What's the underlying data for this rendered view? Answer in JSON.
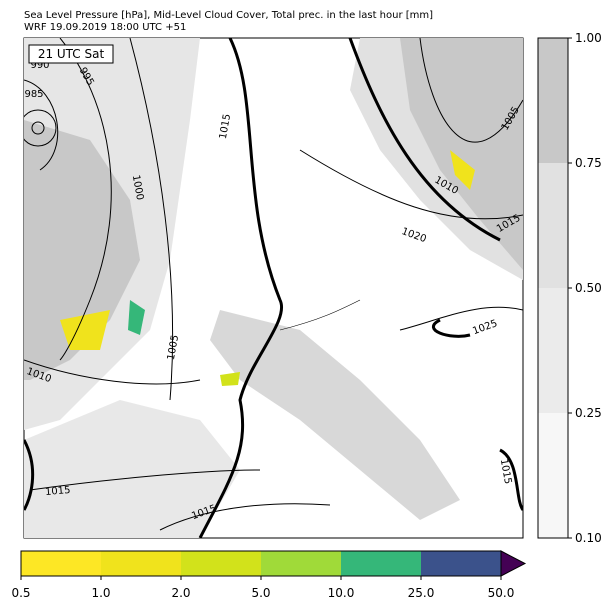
{
  "header": {
    "title_line1": "Sea Level Pressure [hPa], Mid-Level Cloud Cover, Total prec. in the last hour [mm]",
    "title_line2": "WRF 19.09.2019 18:00 UTC +51"
  },
  "map": {
    "time_label": "21 UTC Sat",
    "contour_labels": [
      "995",
      "985",
      "990",
      "1000",
      "1005",
      "1010",
      "1015",
      "1015",
      "1015",
      "1010",
      "1020",
      "1005",
      "1015",
      "1025",
      "1015"
    ]
  },
  "cloud_colorbar": {
    "ticks": [
      "0.10",
      "0.25",
      "0.50",
      "0.75",
      "1.00"
    ],
    "colors": [
      "#f7f7f7",
      "#ebebeb",
      "#e1e1e1",
      "#c8c8c8"
    ]
  },
  "precip_colorbar": {
    "ticks": [
      "0.5",
      "1.0",
      "2.0",
      "5.0",
      "10.0",
      "25.0",
      "50.0"
    ],
    "colors": [
      "#fde725",
      "#f0e31c",
      "#d2e21b",
      "#a0da39",
      "#35b779",
      "#3b528b"
    ],
    "extend_color": "#440154"
  }
}
